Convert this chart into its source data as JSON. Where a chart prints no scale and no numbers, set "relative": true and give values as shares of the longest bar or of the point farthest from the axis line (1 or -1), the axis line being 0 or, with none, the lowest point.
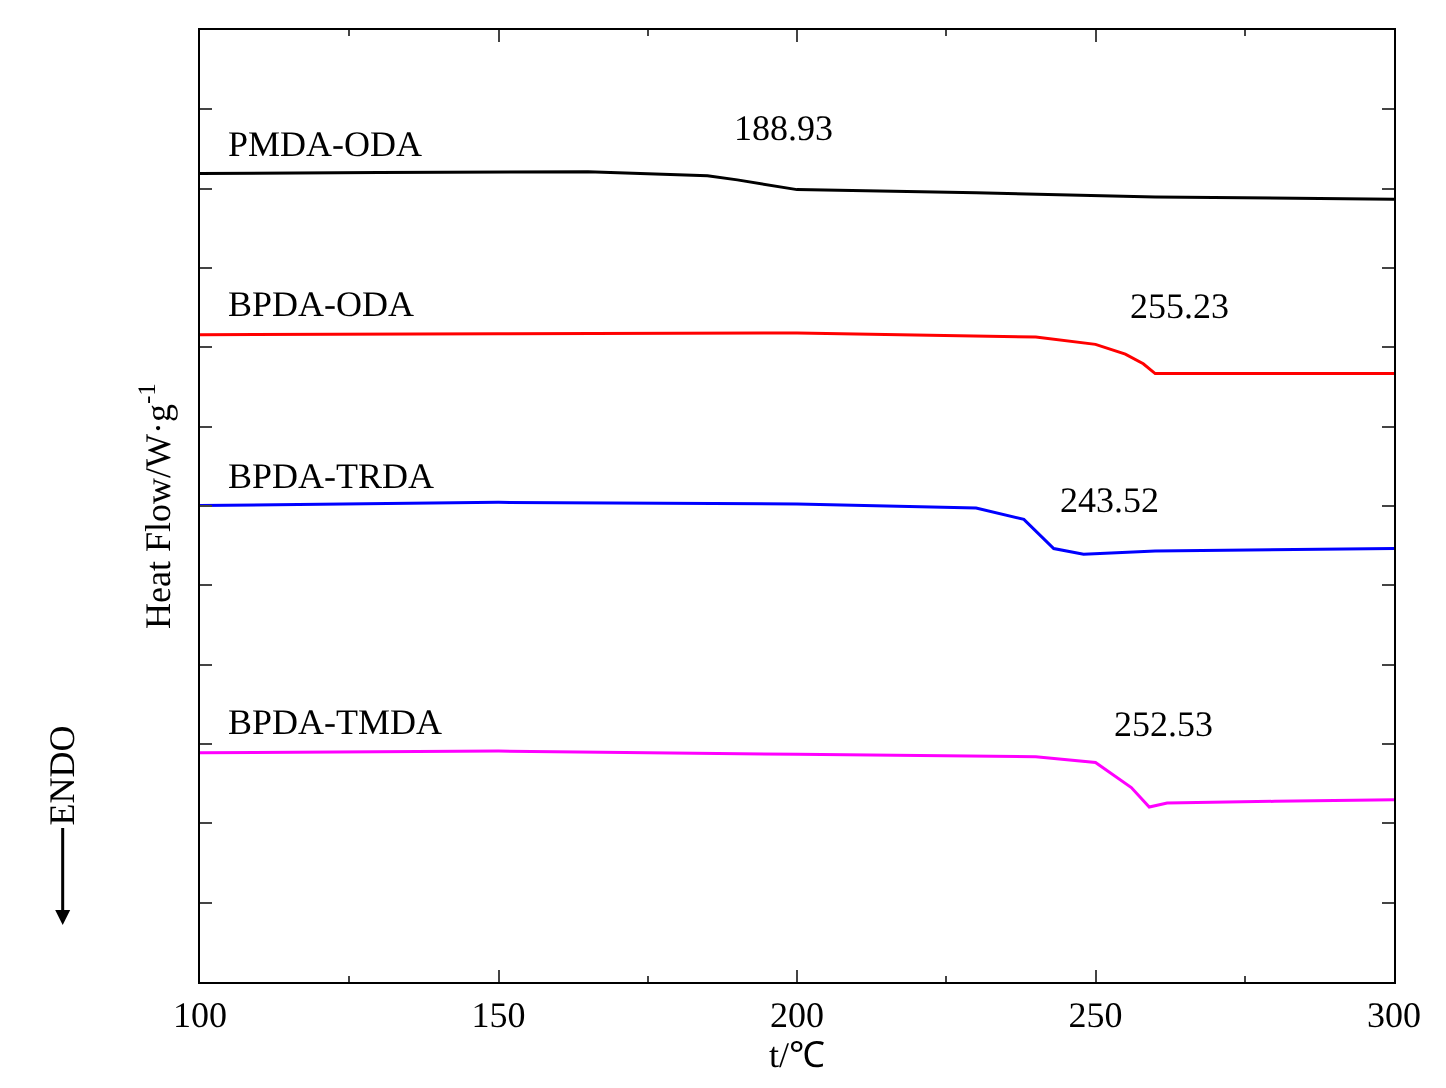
{
  "chart_data": {
    "type": "line",
    "relative": true,
    "xlabel": "t/℃",
    "ylabel": "Heat Flow/W·g$^{-1}$",
    "xlim": [
      100,
      300
    ],
    "xticks": [
      100,
      150,
      200,
      250,
      300
    ],
    "legend": false,
    "tick_labels": "x",
    "series": [
      {
        "name": "PMDA-ODA",
        "color": "#000000",
        "x": [
          100,
          130,
          165,
          185,
          190,
          200,
          230,
          260,
          300
        ],
        "values": [
          0.998,
          0.999,
          1.0,
          0.995,
          0.99,
          0.978,
          0.974,
          0.969,
          0.966
        ]
      },
      {
        "name": "BPDA-ODA",
        "color": "#ff0000",
        "x": [
          100,
          150,
          200,
          240,
          250,
          255,
          258,
          260,
          300
        ],
        "values": [
          0.799,
          0.8,
          0.801,
          0.796,
          0.787,
          0.775,
          0.763,
          0.751,
          0.751
        ]
      },
      {
        "name": "BPDA-TRDA",
        "color": "#0000ff",
        "x": [
          100,
          150,
          200,
          230,
          238,
          243,
          248,
          260,
          300
        ],
        "values": [
          0.588,
          0.592,
          0.59,
          0.585,
          0.571,
          0.535,
          0.528,
          0.532,
          0.535
        ]
      },
      {
        "name": "BPDA-TMDA",
        "color": "#ff00ff",
        "x": [
          100,
          150,
          200,
          240,
          250,
          256,
          259,
          262,
          280,
          300
        ],
        "values": [
          0.283,
          0.285,
          0.281,
          0.278,
          0.271,
          0.24,
          0.216,
          0.221,
          0.223,
          0.225
        ]
      }
    ],
    "annotations": [
      {
        "text": "188.93",
        "x": 188.93,
        "y": 0.994
      },
      {
        "text": "255.23",
        "x": 255.23,
        "y": 0.774
      },
      {
        "text": "243.52",
        "x": 243.52,
        "y": 0.535
      },
      {
        "text": "252.53",
        "x": 252.53,
        "y": 0.258
      },
      "ENDO"
    ]
  }
}
